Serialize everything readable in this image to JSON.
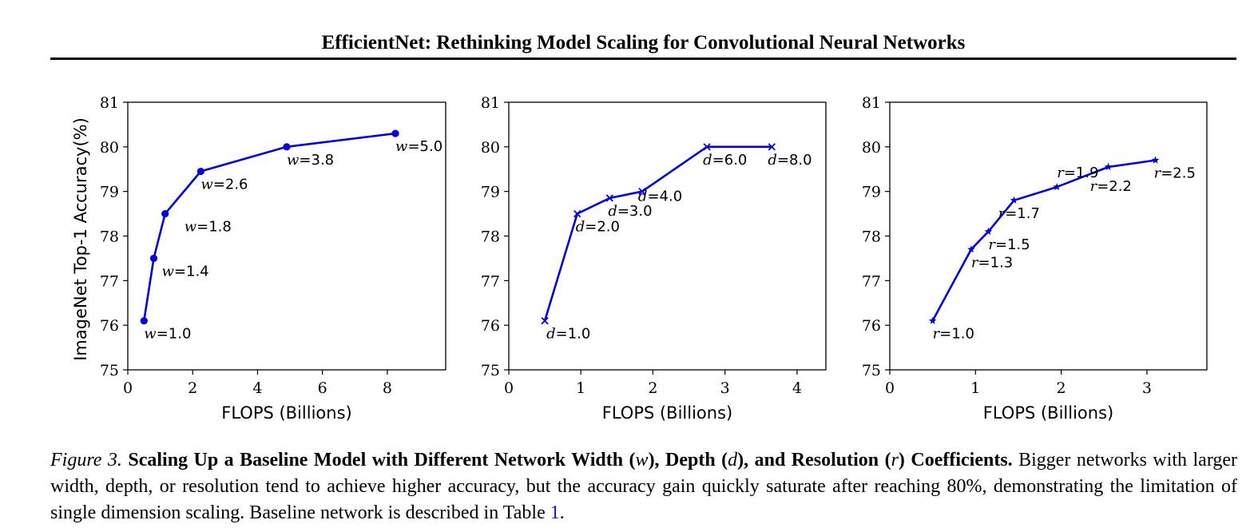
{
  "header": {
    "title": "EfficientNet: Rethinking Model Scaling for Convolutional Neural Networks"
  },
  "colors": {
    "series": "#0000dd",
    "axis": "#000000",
    "ref_link": "#1a1aa6"
  },
  "chart_data": [
    {
      "type": "line",
      "marker": "circle",
      "title": "",
      "xlabel": "FLOPS (Billions)",
      "ylabel": "ImageNet Top-1 Accuracy(%)",
      "xlim": [
        0,
        9.8
      ],
      "ylim": [
        75,
        81
      ],
      "xticks": [
        0,
        2,
        4,
        6,
        8
      ],
      "yticks": [
        75,
        76,
        77,
        78,
        79,
        80,
        81
      ],
      "grid": false,
      "series": [
        {
          "x": [
            0.5,
            0.8,
            1.15,
            2.25,
            4.9,
            8.25
          ],
          "y": [
            76.1,
            77.5,
            78.5,
            79.45,
            80.0,
            80.3
          ],
          "labels": [
            {
              "v": "w",
              "text": "=1.0"
            },
            {
              "v": "w",
              "text": "=1.4"
            },
            {
              "v": "w",
              "text": "=1.8"
            },
            {
              "v": "w",
              "text": "=2.6"
            },
            {
              "v": "w",
              "text": "=3.8"
            },
            {
              "v": "w",
              "text": "=5.0"
            }
          ]
        }
      ]
    },
    {
      "type": "line",
      "marker": "x",
      "title": "",
      "xlabel": "FLOPS (Billions)",
      "ylabel": "",
      "xlim": [
        0,
        4.4
      ],
      "ylim": [
        75,
        81
      ],
      "xticks": [
        0,
        1,
        2,
        3,
        4
      ],
      "yticks": [
        75,
        76,
        77,
        78,
        79,
        80,
        81
      ],
      "grid": false,
      "series": [
        {
          "x": [
            0.5,
            0.95,
            1.4,
            1.85,
            2.75,
            3.65
          ],
          "y": [
            76.1,
            78.5,
            78.85,
            79.0,
            80.0,
            80.0
          ],
          "labels": [
            {
              "v": "d",
              "text": "=1.0"
            },
            {
              "v": "d",
              "text": "=2.0"
            },
            {
              "v": "d",
              "text": "=3.0"
            },
            {
              "v": "d",
              "text": "=4.0"
            },
            {
              "v": "d",
              "text": "=6.0"
            },
            {
              "v": "d",
              "text": "=8.0"
            }
          ]
        }
      ]
    },
    {
      "type": "line",
      "marker": "star",
      "title": "",
      "xlabel": "FLOPS (Billions)",
      "ylabel": "",
      "xlim": [
        0,
        3.7
      ],
      "ylim": [
        75,
        81
      ],
      "xticks": [
        0,
        1,
        2,
        3
      ],
      "yticks": [
        75,
        76,
        77,
        78,
        79,
        80,
        81
      ],
      "grid": false,
      "series": [
        {
          "x": [
            0.5,
            0.95,
            1.15,
            1.45,
            1.95,
            2.55,
            3.1
          ],
          "y": [
            76.1,
            77.7,
            78.1,
            78.8,
            79.1,
            79.55,
            79.7
          ],
          "labels": [
            {
              "v": "r",
              "text": "=1.0"
            },
            {
              "v": "r",
              "text": "=1.3"
            },
            {
              "v": "r",
              "text": "=1.5"
            },
            {
              "v": "r",
              "text": "=1.7"
            },
            {
              "v": "r",
              "text": "=1.9"
            },
            {
              "v": "r",
              "text": "=2.2"
            },
            {
              "v": "r",
              "text": "=2.5"
            }
          ]
        }
      ]
    }
  ],
  "caption": {
    "figure_label": "Figure 3.",
    "bold_1": "Scaling Up a Baseline Model with Different Network Width (",
    "var_w": "w",
    "bold_2": "), Depth (",
    "var_d": "d",
    "bold_3": "), and Resolution (",
    "var_r": "r",
    "bold_4": ") Coefficients.",
    "body": " Bigger networks with larger width, depth, or resolution tend to achieve higher accuracy, but the accuracy gain quickly saturate after reaching 80%, demonstrating the limitation of single dimension scaling. Baseline network is described in Table ",
    "table_ref": "1",
    "end": "."
  }
}
